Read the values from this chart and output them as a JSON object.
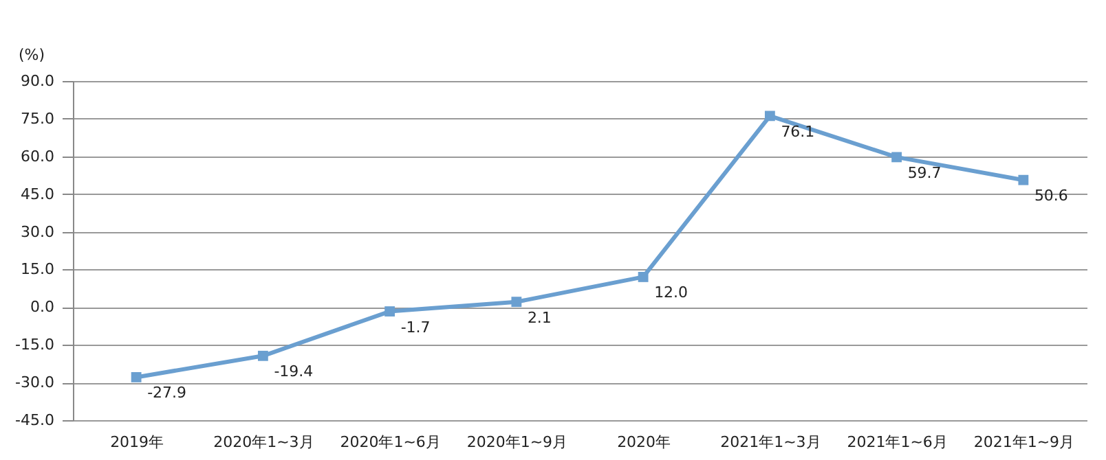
{
  "chart_data": {
    "type": "line",
    "ylabel": "(%)",
    "categories": [
      "2019年",
      "2020年1~3月",
      "2020年1~6月",
      "2020年1~9月",
      "2020年",
      "2021年1~3月",
      "2021年1~6月",
      "2021年1~9月"
    ],
    "series": [
      {
        "color": "#6a9fd0",
        "values": [
          -27.9,
          -19.4,
          -1.7,
          2.1,
          12.0,
          76.1,
          59.7,
          50.6
        ],
        "value_labels": [
          "-27.9",
          "-19.4",
          "-1.7",
          "2.1",
          "12.0",
          "76.1",
          "59.7",
          "50.6"
        ]
      }
    ],
    "ylim": [
      -45,
      90
    ],
    "yticks": [
      {
        "value": -45,
        "label": "-45.0"
      },
      {
        "value": -30,
        "label": "-30.0"
      },
      {
        "value": -15,
        "label": "-15.0"
      },
      {
        "value": 0,
        "label": "0.0"
      },
      {
        "value": 15,
        "label": "15.0"
      },
      {
        "value": 30,
        "label": "30.0"
      },
      {
        "value": 45,
        "label": "45.0"
      },
      {
        "value": 60,
        "label": "60.0"
      },
      {
        "value": 75,
        "label": "75.0"
      },
      {
        "value": 90,
        "label": "90.0"
      }
    ],
    "grid": "y",
    "marker": "square",
    "line_style": "solid"
  }
}
